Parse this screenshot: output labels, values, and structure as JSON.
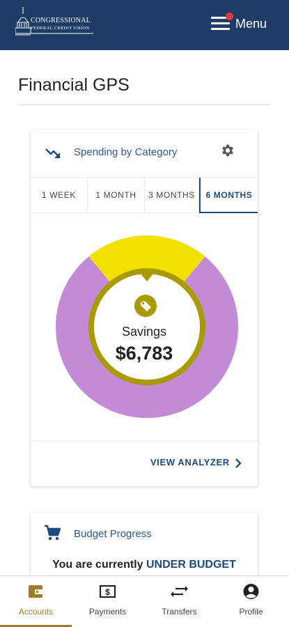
{
  "header": {
    "logo_line1": "CONGRESSIONAL",
    "logo_line2": "FEDERAL CREDIT UNION",
    "menu_label": "Menu",
    "menu_icon": "hamburger-icon",
    "notification_color": "#e53a44",
    "background": "#1d3d66"
  },
  "page": {
    "title": "Financial GPS"
  },
  "spending_card": {
    "title": "Spending by Category",
    "title_icon": "trending-down-icon",
    "settings_icon": "gear-icon",
    "tabs": [
      {
        "label": "1 WEEK",
        "active": false
      },
      {
        "label": "1 MONTH",
        "active": false
      },
      {
        "label": "3 MONTHS",
        "active": false
      },
      {
        "label": "6 MONTHS",
        "active": true
      }
    ],
    "center_icon": "tag-icon",
    "center_label": "Savings",
    "center_value": "$6,783",
    "segments": [
      {
        "color": "#f2e000",
        "fraction": 0.22
      },
      {
        "color": "#c38bd6",
        "fraction": 0.78
      }
    ],
    "ring_color": "#a89a00",
    "view_link": "VIEW ANALYZER",
    "accent": "#1c4a7e"
  },
  "budget_card": {
    "title": "Budget Progress",
    "title_icon": "cart-icon",
    "status_prefix": "You are currently",
    "status_value": "UNDER BUDGET"
  },
  "bottom_nav": {
    "items": [
      {
        "label": "Accounts",
        "icon": "wallet-icon",
        "active": true
      },
      {
        "label": "Payments",
        "icon": "payment-icon",
        "active": false
      },
      {
        "label": "Transfers",
        "icon": "transfer-icon",
        "active": false
      },
      {
        "label": "Profile",
        "icon": "profile-icon",
        "active": false
      }
    ],
    "active_color": "#a07c2a"
  }
}
